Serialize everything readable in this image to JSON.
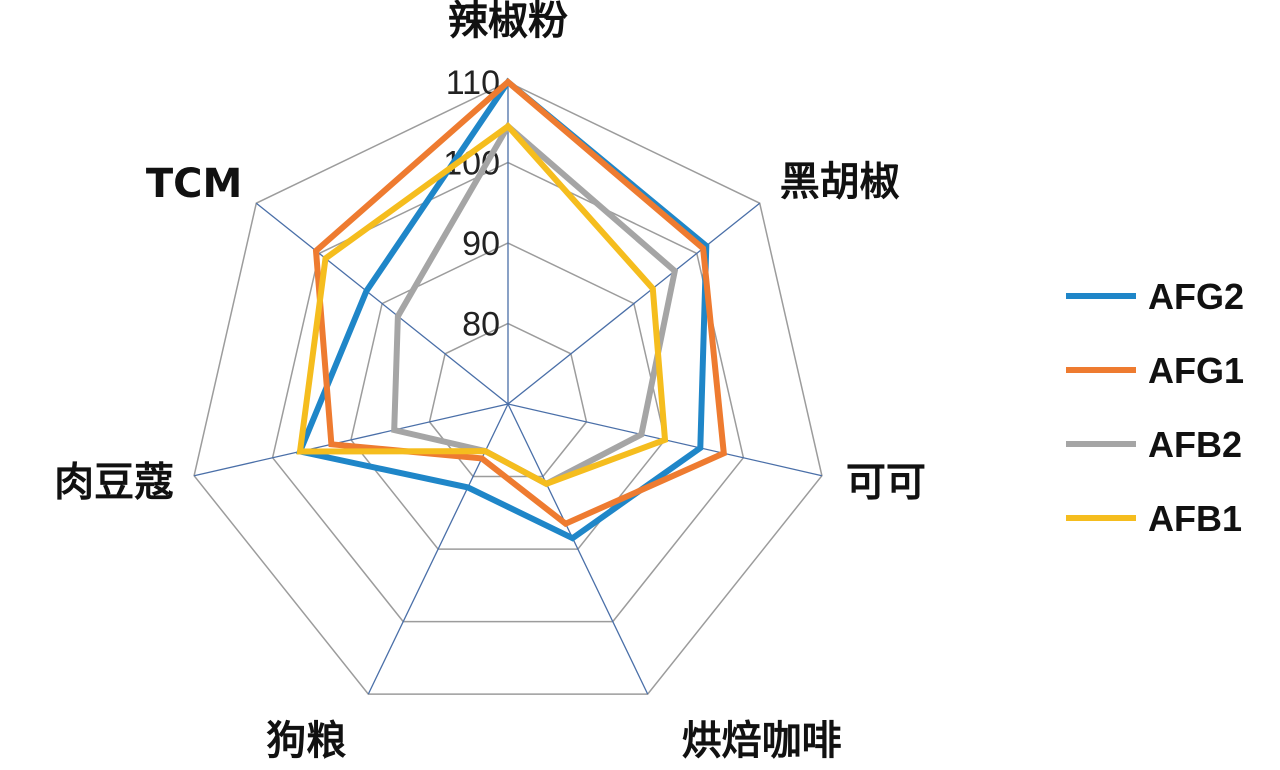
{
  "chart_data": {
    "type": "radar",
    "title": "",
    "categories": [
      "辣椒粉",
      "黑胡椒",
      "可可",
      "烘焙咖啡",
      "狗粮",
      "肉豆蔻",
      "TCM"
    ],
    "rlim": [
      70,
      110
    ],
    "ticks": [
      80,
      90,
      100,
      110
    ],
    "grid": true,
    "legend_position": "right",
    "series": [
      {
        "name": "AFG2",
        "color": "#1f86c8",
        "values": [
          110,
          101.5,
          94.5,
          88.5,
          81.5,
          96.5,
          92.5
        ]
      },
      {
        "name": "AFG1",
        "color": "#ee7b30",
        "values": [
          110,
          101.0,
          97.5,
          86.5,
          77.5,
          92.5,
          100.5
        ]
      },
      {
        "name": "AFB2",
        "color": "#a5a5a5",
        "values": [
          104.5,
          96.5,
          87.0,
          81.0,
          76.5,
          84.5,
          87.5
        ]
      },
      {
        "name": "AFB1",
        "color": "#f5bd1e",
        "values": [
          104.5,
          93.0,
          90.0,
          81.0,
          76.5,
          96.5,
          99.0
        ]
      }
    ]
  }
}
